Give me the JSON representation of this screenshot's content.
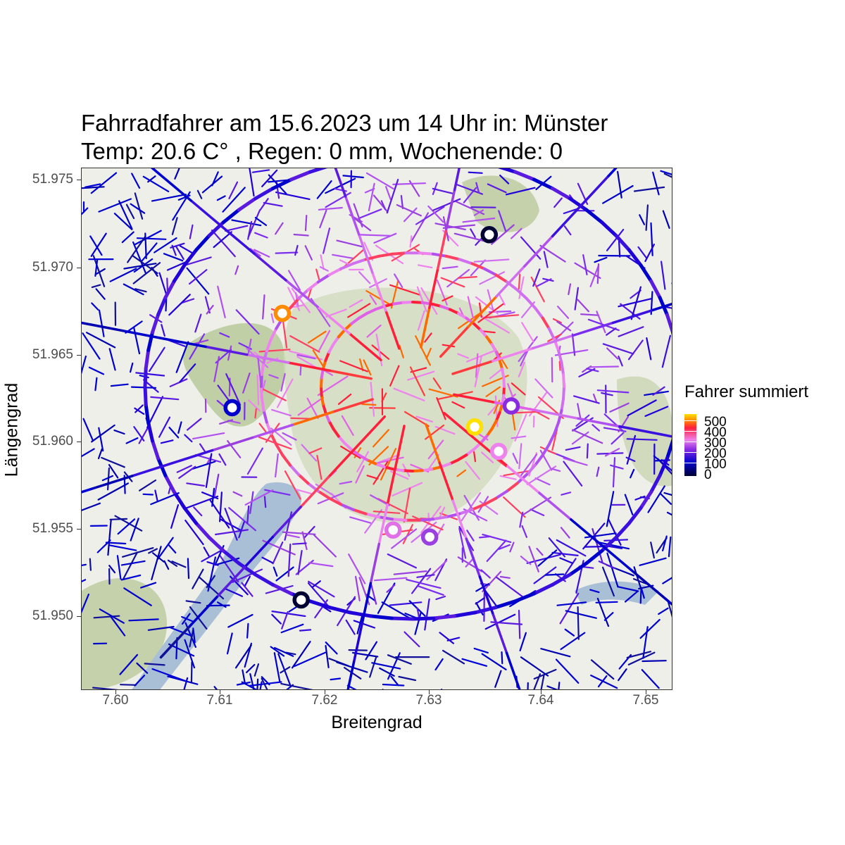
{
  "title": {
    "line1": "Fahrradfahrer am 15.6.2023 um 14 Uhr in: Münster",
    "line2": "Temp: 20.6 C° , Regen: 0 mm, Wochenende: 0"
  },
  "axes": {
    "xlabel": "Breitengrad",
    "ylabel": "Längengrad",
    "x_ticks": [
      "7.60",
      "7.61",
      "7.62",
      "7.63",
      "7.64",
      "7.65"
    ],
    "y_ticks": [
      "51.975",
      "51.970",
      "51.965",
      "51.960",
      "51.955",
      "51.950"
    ]
  },
  "legend": {
    "title": "Fahrer summiert",
    "labels": [
      "500",
      "400",
      "300",
      "200",
      "100",
      "0"
    ],
    "colors": [
      "#ffe000",
      "#ff8c00",
      "#ff1f3a",
      "#ee82ee",
      "#8a2be2",
      "#0000cc",
      "#000033"
    ]
  },
  "map": {
    "city": "Münster",
    "base_colors": {
      "land": "#efefe9",
      "green": "#b9c99b",
      "water": "#a9bfd6"
    },
    "counters": [
      {
        "lon": 7.6357,
        "lat": 51.9716,
        "color": "#000033"
      },
      {
        "lon": 7.6159,
        "lat": 51.9671,
        "color": "#ff8c00"
      },
      {
        "lon": 7.6111,
        "lat": 51.9617,
        "color": "#0000cc"
      },
      {
        "lon": 7.6378,
        "lat": 51.9618,
        "color": "#8a2be2"
      },
      {
        "lon": 7.6343,
        "lat": 51.9606,
        "color": "#ffe000"
      },
      {
        "lon": 7.6366,
        "lat": 51.9592,
        "color": "#ee82ee"
      },
      {
        "lon": 7.6265,
        "lat": 51.9547,
        "color": "#e070e8"
      },
      {
        "lon": 7.63,
        "lat": 51.9543,
        "color": "#9a40e0"
      },
      {
        "lon": 7.6177,
        "lat": 51.9507,
        "color": "#000033"
      }
    ]
  }
}
